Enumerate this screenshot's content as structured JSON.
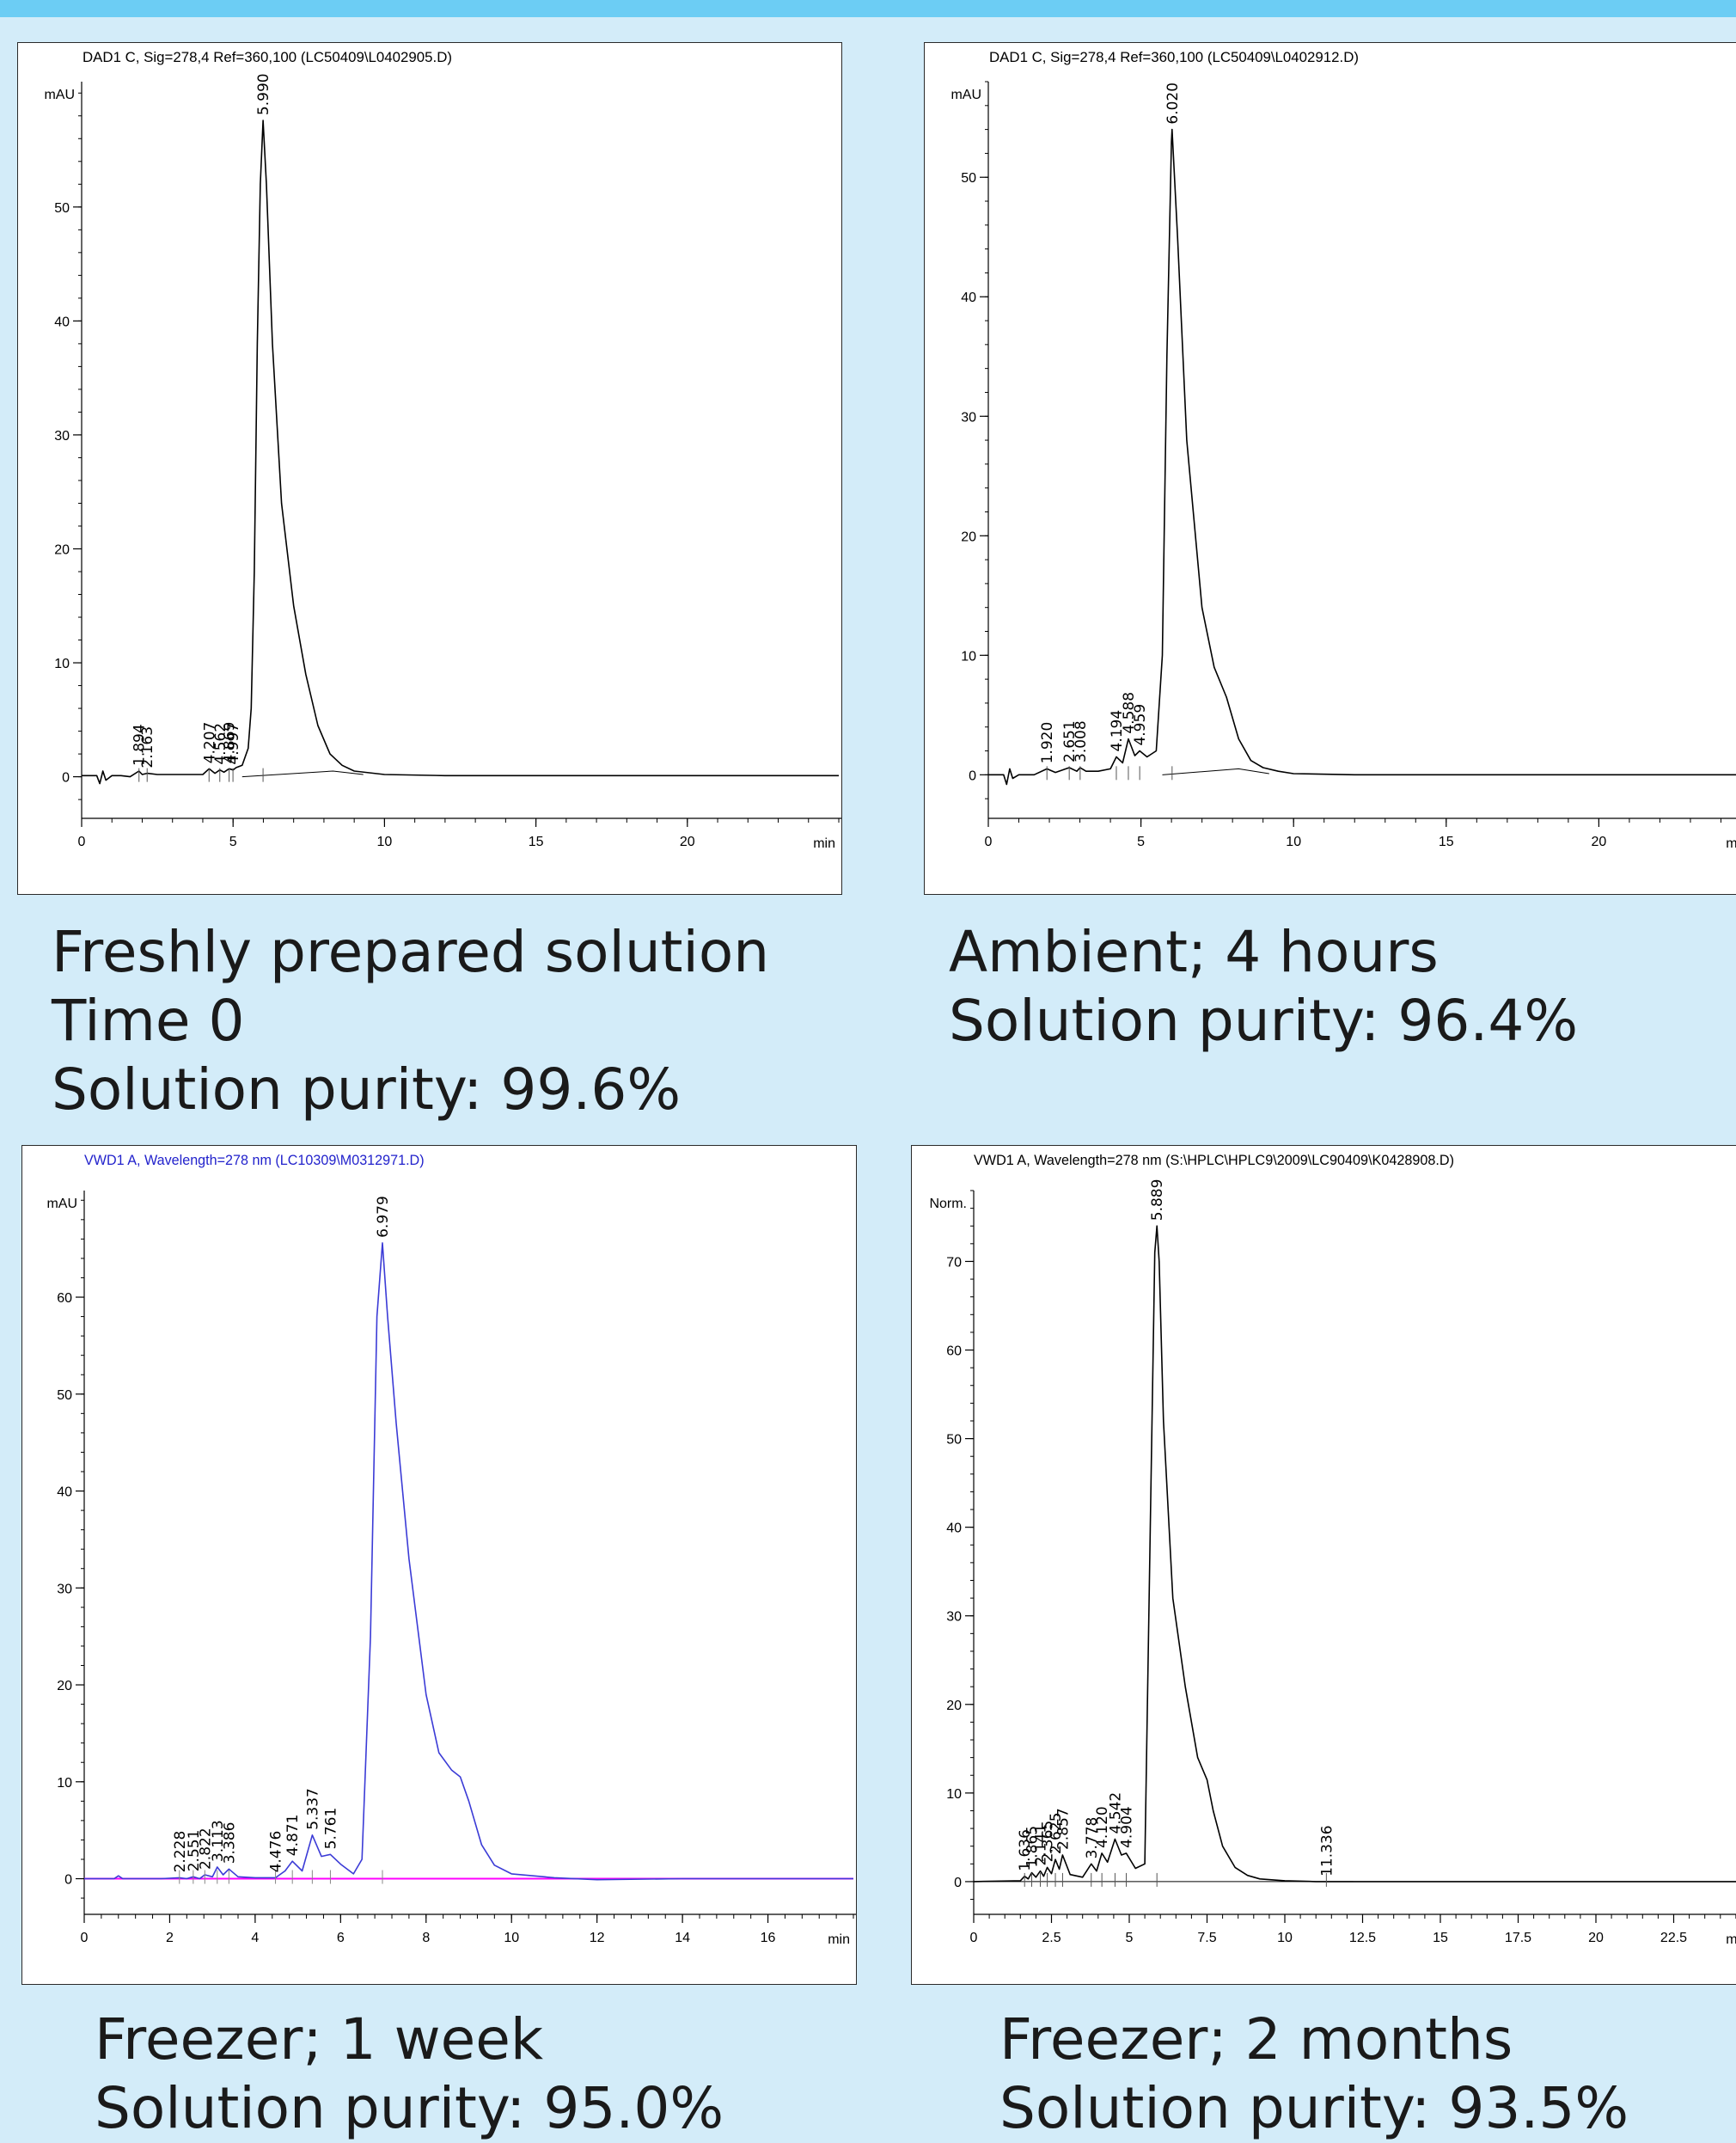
{
  "colors": {
    "background": "#d3ecf9",
    "top_band": "#6ccdf4",
    "blue_trace": "#3b3bd6",
    "baseline_magenta": "#ff00ff"
  },
  "panels": [
    {
      "header": "DAD1 C, Sig=278,4 Ref=360,100 (LC50409\\L0402905.D)",
      "caption_lines": [
        "Freshly prepared solution",
        "Time 0",
        "Solution purity: 99.6%"
      ]
    },
    {
      "header": "DAD1 C, Sig=278,4 Ref=360,100 (LC50409\\L0402912.D)",
      "caption_lines": [
        "Ambient; 4 hours",
        "Solution purity: 96.4%"
      ]
    },
    {
      "header": "VWD1 A, Wavelength=278 nm (LC10309\\M0312971.D)",
      "caption_lines": [
        "Freezer; 1 week",
        "Solution purity: 95.0%"
      ]
    },
    {
      "header": "VWD1 A, Wavelength=278 nm (S:\\HPLC\\HPLC9\\2009\\LC90409\\K0428908.D)",
      "caption_lines": [
        "Freezer; 2 months",
        "Solution purity: 93.5%"
      ]
    }
  ],
  "chart_data": [
    {
      "type": "line",
      "title": "DAD1 C, Sig=278,4 Ref=360,100 (LC50409\\L0402905.D)",
      "ylabel": "mAU",
      "xunit": "min",
      "xlim": [
        0,
        25
      ],
      "ylim": [
        -3.5,
        61
      ],
      "xticks": [
        0,
        5,
        10,
        15,
        20
      ],
      "yticks": [
        0,
        10,
        20,
        30,
        40,
        50
      ],
      "xtick_labels": [
        "0",
        "5",
        "10",
        "15",
        "20"
      ],
      "ytick_labels": [
        "0",
        "10",
        "20",
        "30",
        "40",
        "50"
      ],
      "trace_color": "#000000",
      "series": [
        {
          "x": [
            0.0,
            0.5,
            0.6,
            0.7,
            0.8,
            1.0,
            1.3,
            1.6,
            1.894,
            2.0,
            2.163,
            2.5,
            3.0,
            3.5,
            4.0,
            4.207,
            4.4,
            4.562,
            4.7,
            4.869,
            5.0,
            5.1,
            5.3,
            5.5,
            5.6,
            5.7,
            5.8,
            5.9,
            5.99,
            6.1,
            6.3,
            6.6,
            7.0,
            7.4,
            7.8,
            8.2,
            8.6,
            9.0,
            10.0,
            12.0,
            15.0,
            20.0,
            25.0
          ],
          "y": [
            0.1,
            0.1,
            -0.6,
            0.5,
            -0.3,
            0.1,
            0.1,
            0.0,
            0.5,
            0.2,
            0.3,
            0.2,
            0.2,
            0.2,
            0.2,
            0.7,
            0.3,
            0.6,
            0.4,
            0.7,
            0.6,
            0.8,
            1.0,
            2.5,
            6.0,
            18.0,
            38.0,
            52.0,
            57.6,
            52.0,
            38.0,
            24.0,
            15.0,
            9.0,
            4.5,
            2.0,
            1.0,
            0.5,
            0.2,
            0.1,
            0.1,
            0.1,
            0.1
          ]
        }
      ],
      "baseline": {
        "x": [
          5.3,
          8.3,
          9.3
        ],
        "y": [
          0.0,
          0.5,
          0.2
        ]
      },
      "peak_labels": [
        {
          "x": 1.894,
          "label": "1.894"
        },
        {
          "x": 2.163,
          "label": "2.163"
        },
        {
          "x": 4.207,
          "label": "4.207"
        },
        {
          "x": 4.562,
          "label": "4.562"
        },
        {
          "x": 4.869,
          "label": "4.869"
        },
        {
          "x": 4.997,
          "label": "4.997"
        },
        {
          "x": 5.99,
          "label": "5.990"
        }
      ]
    },
    {
      "type": "line",
      "title": "DAD1 C, Sig=278,4 Ref=360,100 (LC50409\\L0402912.D)",
      "ylabel": "mAU",
      "xunit": "min",
      "xlim": [
        0,
        25
      ],
      "ylim": [
        -3.5,
        58
      ],
      "xticks": [
        0,
        5,
        10,
        15,
        20
      ],
      "yticks": [
        0,
        10,
        20,
        30,
        40,
        50
      ],
      "xtick_labels": [
        "0",
        "5",
        "10",
        "15",
        "20"
      ],
      "ytick_labels": [
        "0",
        "10",
        "20",
        "30",
        "40",
        "50"
      ],
      "trace_color": "#000000",
      "series": [
        {
          "x": [
            0.0,
            0.5,
            0.6,
            0.7,
            0.8,
            1.0,
            1.5,
            1.92,
            2.2,
            2.651,
            2.9,
            3.008,
            3.2,
            3.6,
            4.0,
            4.194,
            4.4,
            4.588,
            4.8,
            4.959,
            5.2,
            5.5,
            5.7,
            5.85,
            6.0,
            6.02,
            6.2,
            6.5,
            7.0,
            7.4,
            7.8,
            8.2,
            8.6,
            9.0,
            9.5,
            10.0,
            12.0,
            15.0,
            20.0,
            25.0
          ],
          "y": [
            0.0,
            0.0,
            -0.8,
            0.5,
            -0.3,
            0.0,
            0.0,
            0.5,
            0.2,
            0.6,
            0.3,
            0.6,
            0.3,
            0.3,
            0.5,
            1.5,
            1.0,
            3.0,
            1.6,
            2.0,
            1.5,
            2.0,
            10.0,
            35.0,
            53.0,
            54.0,
            45.0,
            28.0,
            14.0,
            9.0,
            6.5,
            3.0,
            1.2,
            0.6,
            0.3,
            0.1,
            0.0,
            0.0,
            0.0,
            0.0
          ]
        }
      ],
      "baseline": {
        "x": [
          5.7,
          8.2,
          9.2
        ],
        "y": [
          0.0,
          0.5,
          0.1
        ]
      },
      "peak_labels": [
        {
          "x": 1.92,
          "label": "1.920"
        },
        {
          "x": 2.651,
          "label": "2.651"
        },
        {
          "x": 3.008,
          "label": "3.008"
        },
        {
          "x": 4.194,
          "label": "4.194"
        },
        {
          "x": 4.588,
          "label": "4.588"
        },
        {
          "x": 4.959,
          "label": "4.959"
        },
        {
          "x": 6.02,
          "label": "6.020"
        }
      ]
    },
    {
      "type": "line",
      "title": "VWD1 A, Wavelength=278 nm (LC10309\\M0312971.D)",
      "ylabel": "mAU",
      "xunit": "min",
      "xlim": [
        0,
        18
      ],
      "ylim": [
        -3.5,
        71
      ],
      "xticks": [
        0,
        2,
        4,
        6,
        8,
        10,
        12,
        14,
        16
      ],
      "yticks": [
        0,
        10,
        20,
        30,
        40,
        50,
        60
      ],
      "xtick_labels": [
        "0",
        "2",
        "4",
        "6",
        "8",
        "10",
        "12",
        "14",
        "16"
      ],
      "ytick_labels": [
        "0",
        "10",
        "20",
        "30",
        "40",
        "50",
        "60"
      ],
      "trace_color": "#3b3bd6",
      "series": [
        {
          "x": [
            0.0,
            0.7,
            0.8,
            0.9,
            1.8,
            2.228,
            2.4,
            2.551,
            2.7,
            2.822,
            3.0,
            3.113,
            3.25,
            3.386,
            3.6,
            4.0,
            4.476,
            4.7,
            4.871,
            5.1,
            5.337,
            5.55,
            5.761,
            6.0,
            6.3,
            6.5,
            6.7,
            6.85,
            6.979,
            7.1,
            7.3,
            7.6,
            8.0,
            8.3,
            8.6,
            8.8,
            9.0,
            9.3,
            9.6,
            10.0,
            11.0,
            12.0,
            14.0,
            18.0
          ],
          "y": [
            0.0,
            0.0,
            0.3,
            0.0,
            0.0,
            0.1,
            0.0,
            0.2,
            0.0,
            0.4,
            0.2,
            1.2,
            0.4,
            1.0,
            0.2,
            0.1,
            0.1,
            0.8,
            1.8,
            0.8,
            4.5,
            2.3,
            2.5,
            1.5,
            0.5,
            2.0,
            25.0,
            58.0,
            65.6,
            58.0,
            47.0,
            33.0,
            19.0,
            13.0,
            11.2,
            10.5,
            8.0,
            3.5,
            1.4,
            0.5,
            0.1,
            -0.1,
            0.0,
            0.0
          ]
        }
      ],
      "baseline": {
        "x": [
          0.0,
          18.0
        ],
        "y": [
          0.0,
          0.0
        ],
        "color": "#ff00ff"
      },
      "peak_labels": [
        {
          "x": 2.228,
          "label": "2.228"
        },
        {
          "x": 2.551,
          "label": "2.551"
        },
        {
          "x": 2.822,
          "label": "2.822"
        },
        {
          "x": 3.113,
          "label": "3.113"
        },
        {
          "x": 3.386,
          "label": "3.386"
        },
        {
          "x": 4.476,
          "label": "4.476"
        },
        {
          "x": 4.871,
          "label": "4.871"
        },
        {
          "x": 5.337,
          "label": "5.337"
        },
        {
          "x": 5.761,
          "label": "5.761"
        },
        {
          "x": 6.979,
          "label": "6.979"
        }
      ]
    },
    {
      "type": "line",
      "title": "VWD1 A, Wavelength=278 nm (S:\\HPLC\\HPLC9\\2009\\LC90409\\K0428908.D)",
      "ylabel": "Norm.",
      "xunit": "min",
      "xlim": [
        0,
        25
      ],
      "ylim": [
        -3.5,
        78
      ],
      "xticks": [
        0,
        2.5,
        5,
        7.5,
        10,
        12.5,
        15,
        17.5,
        20,
        22.5
      ],
      "yticks": [
        0,
        10,
        20,
        30,
        40,
        50,
        60,
        70
      ],
      "xtick_labels": [
        "0",
        "2.5",
        "5",
        "7.5",
        "10",
        "12.5",
        "15",
        "17.5",
        "20",
        "22.5"
      ],
      "ytick_labels": [
        "0",
        "10",
        "20",
        "30",
        "40",
        "50",
        "60",
        "70"
      ],
      "trace_color": "#000000",
      "series": [
        {
          "x": [
            0.0,
            1.5,
            1.636,
            1.75,
            1.865,
            2.0,
            2.141,
            2.25,
            2.365,
            2.5,
            2.625,
            2.75,
            2.857,
            3.1,
            3.5,
            3.778,
            3.95,
            4.12,
            4.3,
            4.542,
            4.75,
            4.904,
            5.2,
            5.5,
            5.7,
            5.82,
            5.889,
            5.96,
            6.1,
            6.4,
            6.8,
            7.2,
            7.5,
            7.7,
            8.0,
            8.4,
            8.8,
            9.2,
            10.0,
            11.0,
            11.336,
            12.0,
            25.0
          ],
          "y": [
            0.0,
            0.1,
            0.6,
            0.3,
            1.0,
            0.5,
            1.2,
            0.6,
            1.6,
            0.9,
            2.5,
            1.4,
            3.0,
            0.8,
            0.5,
            2.0,
            1.2,
            3.2,
            2.2,
            4.8,
            3.0,
            3.2,
            1.5,
            2.0,
            45.0,
            71.0,
            74.0,
            70.0,
            52.0,
            32.0,
            22.0,
            14.0,
            11.5,
            8.0,
            4.0,
            1.6,
            0.7,
            0.3,
            0.1,
            0.0,
            0.0,
            0.0,
            0.0
          ]
        }
      ],
      "baseline": {
        "x": [
          0.0,
          12.2
        ],
        "y": [
          0.0,
          0.0
        ]
      },
      "peak_labels": [
        {
          "x": 1.636,
          "label": "1.636"
        },
        {
          "x": 1.865,
          "label": "1.865"
        },
        {
          "x": 2.141,
          "label": "2.141"
        },
        {
          "x": 2.365,
          "label": "2.365"
        },
        {
          "x": 2.625,
          "label": "2.625"
        },
        {
          "x": 2.857,
          "label": "2.857"
        },
        {
          "x": 3.778,
          "label": "3.778"
        },
        {
          "x": 4.12,
          "label": "4.120"
        },
        {
          "x": 4.542,
          "label": "4.542"
        },
        {
          "x": 4.904,
          "label": "4.904"
        },
        {
          "x": 5.889,
          "label": "5.889"
        },
        {
          "x": 11.336,
          "label": "11.336"
        }
      ]
    }
  ]
}
